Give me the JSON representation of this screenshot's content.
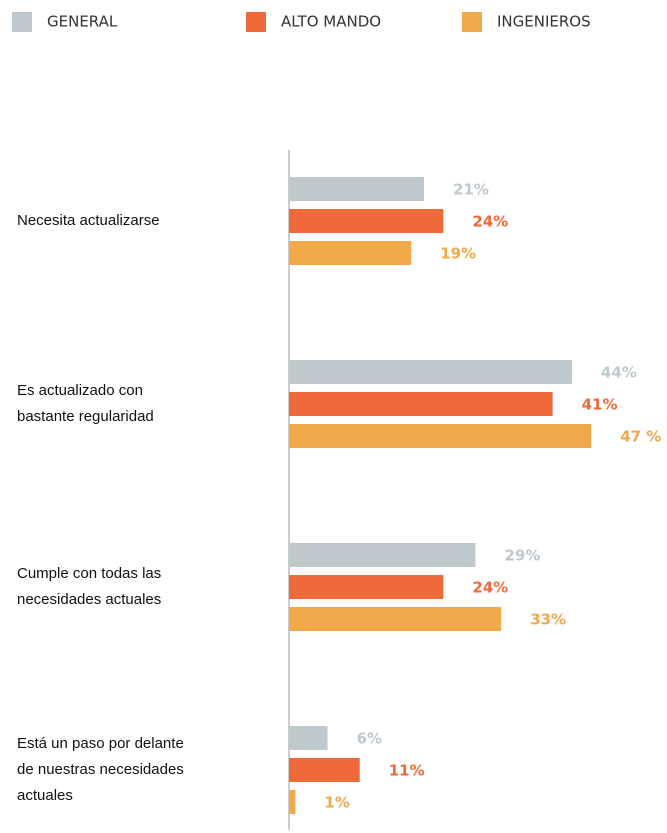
{
  "chart_data": {
    "type": "bar",
    "orientation": "horizontal",
    "categories": [
      [
        "Necesita actualizarse"
      ],
      [
        "Es actualizado con",
        "bastante regularidad"
      ],
      [
        "Cumple con todas las",
        "necesidades actuales"
      ],
      [
        "Está un paso por delante",
        "de nuestras necesidades",
        "actuales"
      ]
    ],
    "series": [
      {
        "name": "GENERAL",
        "color": "#bfc8cc",
        "values": [
          21,
          44,
          29,
          6
        ],
        "value_labels": [
          "21%",
          "44%",
          "29%",
          "6%"
        ]
      },
      {
        "name": "ALTO MANDO",
        "color": "#ee6a3a",
        "values": [
          24,
          41,
          24,
          11
        ],
        "value_labels": [
          "24%",
          "41%",
          "24%",
          "11%"
        ]
      },
      {
        "name": "INGENIEROS",
        "color": "#f0a94b",
        "values": [
          19,
          47,
          33,
          1
        ],
        "value_labels": [
          "19%",
          "47 %",
          "33%",
          "1%"
        ]
      }
    ],
    "legend": "top"
  }
}
